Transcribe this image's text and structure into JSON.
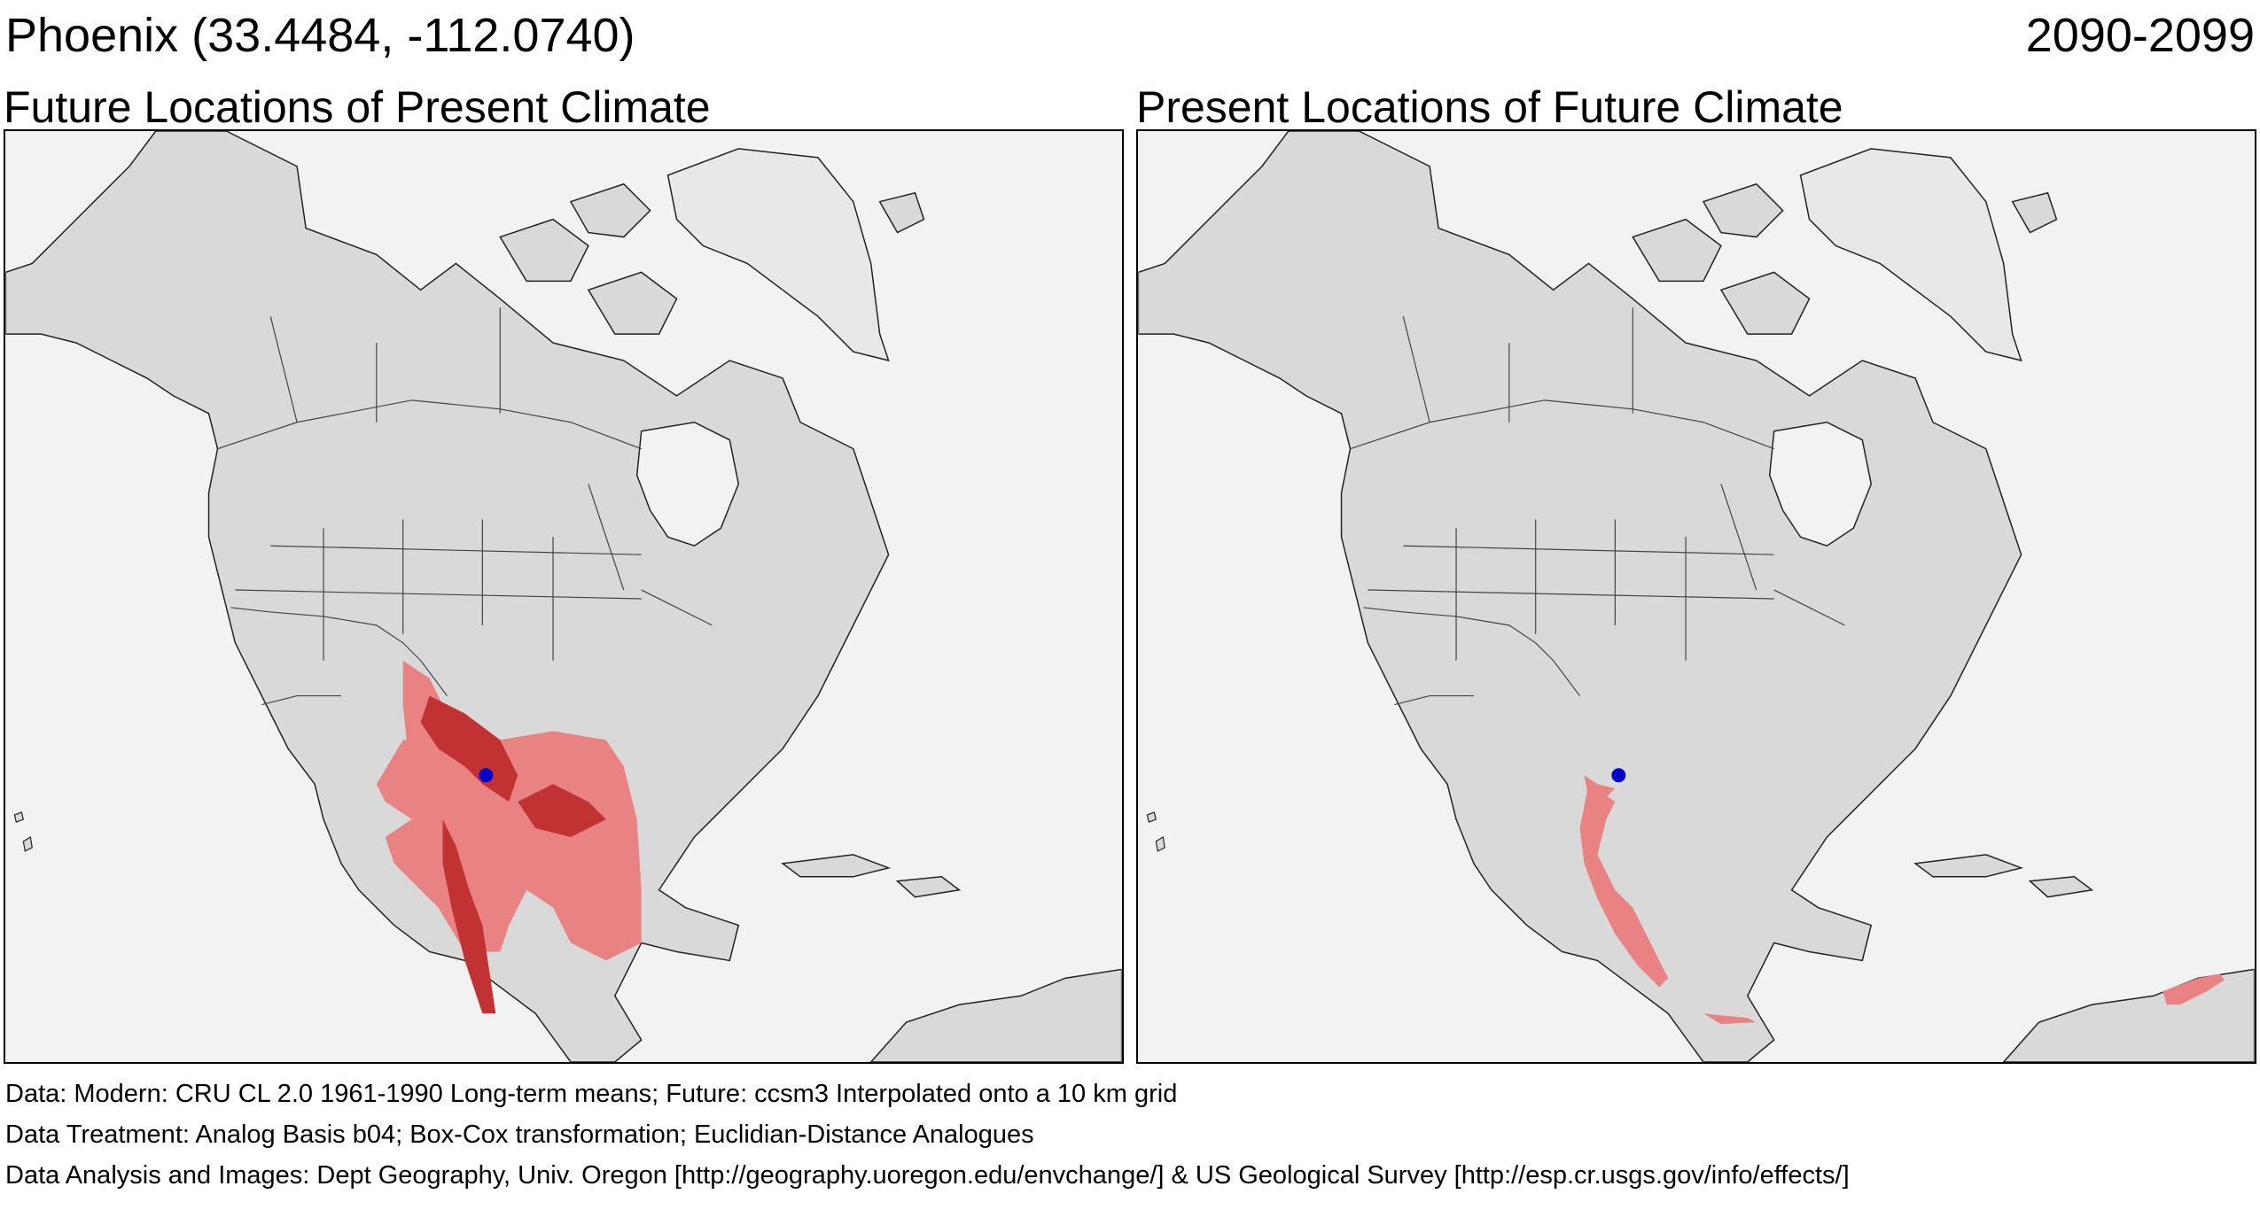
{
  "header": {
    "location": "Phoenix  (33.4484, -112.0740)",
    "period": "2090-2099"
  },
  "panels": {
    "left_title": "Future Locations of Present Climate",
    "right_title": "Present Locations of Future Climate"
  },
  "legend_colors": {
    "analog_light": "#e98383",
    "analog_dark": "#c23232",
    "target_point": "#0000cc",
    "land": "#d9d9d9",
    "ocean": "#f2f2f2"
  },
  "footer": {
    "data": "Data:  Modern: CRU CL 2.0 1961-1990 Long-term means; Future: ccsm3 Interpolated onto a 10 km grid",
    "treatment": "Data Treatment:  Analog Basis b04; Box-Cox transformation; Euclidian-Distance Analogues",
    "analysis": "Data Analysis and Images:  Dept Geography, Univ. Oregon [http://geography.uoregon.edu/envchange/] & US Geological Survey [http://esp.cr.usgs.gov/info/effects/]"
  }
}
